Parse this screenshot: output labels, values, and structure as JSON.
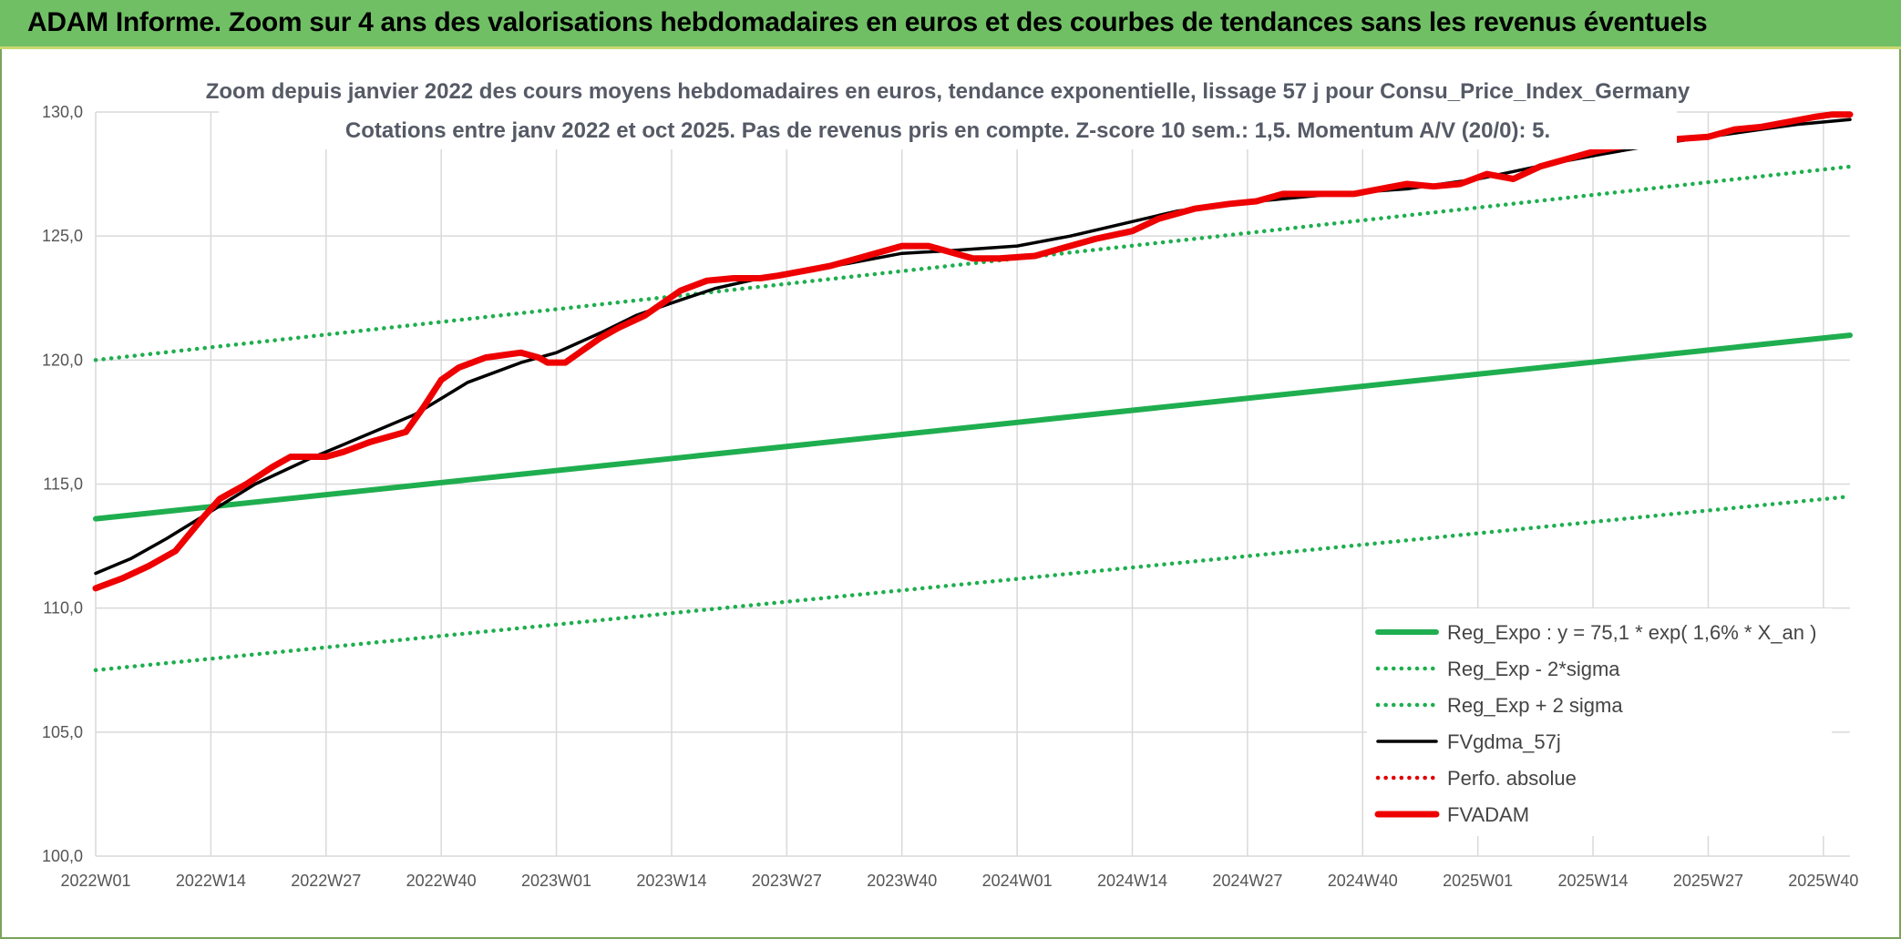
{
  "header": {
    "title": "ADAM Informe. Zoom sur 4 ans des valorisations hebdomadaires en euros et des courbes de tendances sans les revenus éventuels"
  },
  "colors": {
    "header_bg": "#70bf65",
    "reg_expo": "#1fae4f",
    "sigma": "#1fae4f",
    "fvgdma": "#000000",
    "perfo": "#e00000",
    "fvadam": "#ee0000"
  },
  "chart_data": {
    "type": "line",
    "title_line1": "Zoom depuis janvier 2022 des cours moyens hebdomadaires en euros, tendance exponentielle, lissage 57 j pour Consu_Price_Index_Germany",
    "title_line2": "Cotations entre janv 2022 et oct 2025. Pas de revenus pris en compte. Z-score 10 sem.: 1,5. Momentum A/V (20/0): 5.",
    "ylim": [
      100,
      130
    ],
    "yticks": [
      "100,0",
      "105,0",
      "110,0",
      "115,0",
      "120,0",
      "125,0",
      "130,0"
    ],
    "xlim": [
      0,
      198
    ],
    "xticks": [
      {
        "week": 0,
        "label": "2022W01"
      },
      {
        "week": 13,
        "label": "2022W14"
      },
      {
        "week": 26,
        "label": "2022W27"
      },
      {
        "week": 39,
        "label": "2022W40"
      },
      {
        "week": 52,
        "label": "2023W01"
      },
      {
        "week": 65,
        "label": "2023W14"
      },
      {
        "week": 78,
        "label": "2023W27"
      },
      {
        "week": 91,
        "label": "2023W40"
      },
      {
        "week": 104,
        "label": "2024W01"
      },
      {
        "week": 117,
        "label": "2024W14"
      },
      {
        "week": 130,
        "label": "2024W27"
      },
      {
        "week": 143,
        "label": "2024W40"
      },
      {
        "week": 156,
        "label": "2025W01"
      },
      {
        "week": 169,
        "label": "2025W14"
      },
      {
        "week": 182,
        "label": "2025W27"
      },
      {
        "week": 195,
        "label": "2025W40"
      }
    ],
    "series": [
      {
        "name": "Reg_Expo : y = 75,1 * exp( 1,6% *  X_an )",
        "style": "solid-thick",
        "color": "#1fae4f",
        "x": [
          0,
          198
        ],
        "y": [
          113.6,
          121.0
        ]
      },
      {
        "name": "Reg_Exp - 2*sigma",
        "style": "dotted",
        "color": "#1fae4f",
        "x": [
          0,
          198
        ],
        "y": [
          107.5,
          114.5
        ]
      },
      {
        "name": "Reg_Exp + 2 sigma",
        "style": "dotted",
        "color": "#1fae4f",
        "x": [
          0,
          198
        ],
        "y": [
          120.0,
          127.8
        ]
      },
      {
        "name": "FVgdma_57j",
        "style": "solid",
        "color": "#000000",
        "x": [
          0,
          4,
          8,
          13,
          18,
          24,
          30,
          36,
          42,
          48,
          52,
          57,
          61,
          65,
          70,
          75,
          80,
          85,
          91,
          96,
          104,
          110,
          116,
          122,
          128,
          134,
          140,
          148,
          156,
          164,
          170,
          178,
          186,
          192,
          198
        ],
        "y": [
          111.4,
          112.0,
          112.8,
          113.9,
          115.0,
          116.0,
          116.9,
          117.8,
          119.1,
          119.9,
          120.3,
          121.1,
          121.8,
          122.3,
          122.9,
          123.3,
          123.6,
          123.9,
          124.3,
          124.4,
          124.6,
          125.0,
          125.5,
          126.0,
          126.3,
          126.5,
          126.7,
          126.9,
          127.3,
          127.9,
          128.3,
          128.8,
          129.2,
          129.5,
          129.7
        ]
      },
      {
        "name": "Perfo. absolue",
        "style": "dotted",
        "color": "#e00000",
        "x": [],
        "y": []
      },
      {
        "name": "FVADAM",
        "style": "solid-thick",
        "color": "#ee0000",
        "x": [
          0,
          3,
          6,
          9,
          12,
          13,
          14,
          17,
          20,
          22,
          26,
          28,
          31,
          34,
          35,
          37,
          39,
          41,
          44,
          46,
          48,
          50,
          51,
          53,
          55,
          57,
          59,
          62,
          64,
          66,
          69,
          72,
          75,
          77,
          80,
          83,
          86,
          88,
          91,
          94,
          96,
          99,
          102,
          106,
          109,
          113,
          117,
          120,
          124,
          128,
          131,
          134,
          138,
          142,
          145,
          148,
          151,
          154,
          157,
          160,
          163,
          166,
          169,
          172,
          174,
          178,
          182,
          185,
          188,
          191,
          194,
          196,
          198
        ],
        "y": [
          110.8,
          111.2,
          111.7,
          112.3,
          113.6,
          114.0,
          114.4,
          115.0,
          115.7,
          116.1,
          116.1,
          116.3,
          116.7,
          117.0,
          117.1,
          118.1,
          119.2,
          119.7,
          120.1,
          120.2,
          120.3,
          120.1,
          119.9,
          119.9,
          120.4,
          120.9,
          121.3,
          121.8,
          122.3,
          122.8,
          123.2,
          123.3,
          123.3,
          123.4,
          123.6,
          123.8,
          124.1,
          124.3,
          124.6,
          124.6,
          124.4,
          124.1,
          124.1,
          124.2,
          124.5,
          124.9,
          125.2,
          125.7,
          126.1,
          126.3,
          126.4,
          126.7,
          126.7,
          126.7,
          126.9,
          127.1,
          127.0,
          127.1,
          127.5,
          127.3,
          127.8,
          128.1,
          128.4,
          128.6,
          128.7,
          128.9,
          129.0,
          129.3,
          129.4,
          129.6,
          129.8,
          129.9,
          129.9
        ]
      }
    ]
  }
}
